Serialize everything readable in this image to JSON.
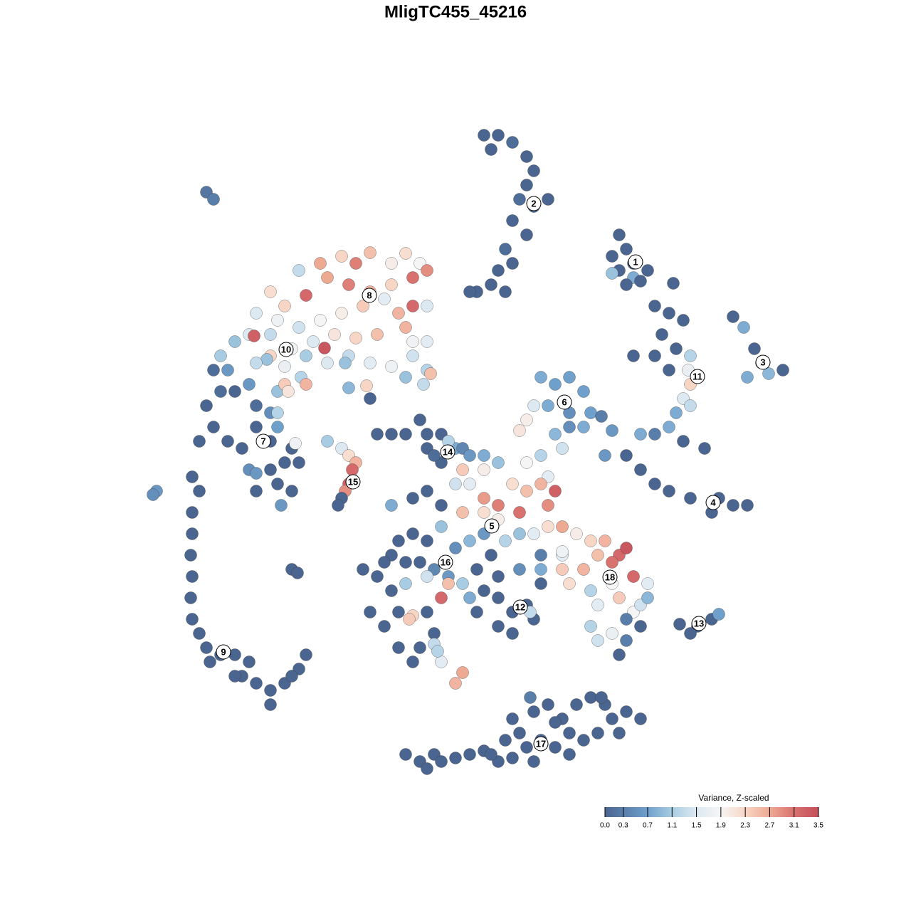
{
  "chart_data": {
    "type": "scatter",
    "title": "MligTC455_45216",
    "xlim": [
      0,
      128
    ],
    "ylim": [
      128,
      0
    ],
    "x": [
      68,
      70,
      69,
      72,
      74,
      75,
      74,
      73,
      75,
      77,
      72,
      74,
      71,
      72,
      70,
      69,
      67,
      71,
      66,
      87,
      88,
      86,
      89,
      87,
      86,
      89,
      91,
      88,
      90,
      94.6,
      92,
      94,
      96,
      93,
      95,
      92,
      89,
      97,
      94,
      96.7,
      97,
      96,
      95,
      97,
      94,
      92,
      96,
      99,
      90,
      103,
      104.5,
      106,
      107,
      110,
      105,
      108,
      86,
      88,
      90,
      92,
      94,
      97,
      100,
      103,
      105,
      101,
      85,
      76,
      78,
      80,
      82,
      77,
      80,
      83,
      75,
      74,
      73,
      78,
      80,
      76,
      79,
      82,
      84.5,
      74,
      77,
      42,
      45,
      48,
      50,
      52,
      55,
      57,
      59,
      60,
      58,
      55,
      52,
      49,
      46,
      43,
      40,
      38,
      36,
      39,
      42,
      45,
      48,
      51,
      54,
      56,
      58,
      60,
      57,
      53,
      50,
      47,
      44,
      41,
      38,
      35,
      33,
      31,
      35.7,
      45.6,
      38,
      40,
      43,
      46,
      49,
      52,
      55,
      58,
      60,
      57,
      60,
      58,
      60.5,
      48.5,
      42.3,
      37.5,
      32,
      36,
      49,
      51.5,
      52,
      59.5,
      30,
      31,
      29,
      33,
      35,
      36,
      38,
      39,
      40,
      40.5,
      43,
      39,
      36,
      30,
      32,
      28,
      34,
      38,
      35,
      38,
      40,
      42,
      41,
      39,
      36,
      39.5,
      41,
      41.5,
      39,
      36,
      27,
      28,
      27,
      27,
      26.8,
      27,
      26.8,
      27,
      28,
      29,
      31,
      33,
      35,
      34,
      36,
      38,
      40,
      42,
      43,
      41,
      38,
      33,
      29.5,
      22,
      21.5,
      29,
      30,
      41,
      41.8,
      46,
      48,
      49,
      50,
      49.5,
      49,
      48.5,
      48,
      47.5,
      53,
      55,
      57,
      59,
      60,
      62,
      60,
      62,
      64,
      65,
      66,
      68,
      70,
      61,
      68,
      65,
      63,
      55,
      58,
      60,
      62,
      64,
      66,
      68,
      70,
      72,
      74,
      76,
      78,
      77,
      73,
      70,
      68,
      65,
      62,
      64,
      60,
      58,
      56,
      55,
      57,
      59,
      61,
      63,
      65,
      67,
      69,
      71,
      73,
      75,
      77,
      79,
      81,
      83,
      85,
      87,
      88,
      86,
      84,
      82,
      80,
      86,
      87,
      89,
      89,
      84,
      83,
      84,
      86,
      88,
      90,
      91,
      91,
      90,
      88,
      87,
      83,
      79,
      76,
      73,
      70,
      68,
      66,
      70,
      72,
      74,
      76,
      75,
      70,
      72,
      67,
      63,
      62,
      60,
      57,
      55,
      53,
      51,
      54,
      56,
      52,
      54,
      60,
      61,
      59,
      58,
      56,
      61,
      62,
      61.5,
      64,
      65,
      58,
      57.5,
      74.5,
      79,
      79,
      76,
      68,
      66,
      95.5,
      98,
      100,
      101,
      97,
      57,
      59,
      61,
      62,
      64,
      66,
      68,
      70,
      72,
      74,
      73,
      72,
      74.5,
      75,
      77,
      79,
      81,
      83,
      85,
      86,
      88,
      90,
      87,
      84,
      82,
      80,
      78,
      76,
      80,
      75,
      71,
      69,
      84.5,
      78,
      60
    ],
    "y": [
      19,
      19,
      21,
      20,
      22,
      24,
      26,
      28,
      29,
      28,
      31,
      33,
      35,
      37,
      38,
      40,
      41,
      41,
      41,
      33,
      35,
      36,
      37,
      38,
      38.4,
      39,
      38,
      40,
      39.5,
      39.8,
      43,
      44,
      45,
      47,
      49,
      50,
      50,
      50,
      52,
      52,
      54,
      56,
      58,
      57,
      60,
      61,
      62,
      63,
      61,
      44.5,
      46,
      49,
      51,
      52,
      53,
      52.5,
      60.5,
      64,
      66,
      68,
      69,
      70,
      72,
      71,
      71,
      70,
      64,
      53,
      54,
      53,
      55,
      57,
      58,
      58,
      57,
      59,
      60.5,
      61,
      60,
      64,
      63,
      60,
      58.5,
      65,
      67,
      38,
      37,
      36,
      37,
      35.5,
      37,
      35.6,
      37,
      38,
      39,
      40,
      41,
      40,
      39,
      41.5,
      43,
      41,
      44,
      45,
      46,
      45,
      44,
      43,
      42,
      44,
      43,
      43,
      46,
      47,
      47.5,
      47,
      48,
      49,
      47,
      47,
      48,
      50,
      47.2,
      48.9,
      50,
      51.5,
      50,
      51,
      50,
      51,
      51.5,
      50,
      52,
      53,
      48,
      48,
      52.5,
      51,
      53,
      50.5,
      52,
      51,
      54.5,
      54.2,
      56,
      54,
      52,
      55,
      57,
      55,
      54,
      57,
      58,
      55,
      54,
      55,
      54,
      58,
      60,
      60,
      62,
      62,
      63,
      62,
      66,
      66,
      65,
      65,
      63,
      68,
      69,
      71,
      69,
      62.3,
      60,
      66.5,
      67,
      69,
      72,
      75,
      78,
      81,
      84,
      87,
      89,
      91,
      92,
      92,
      93,
      95,
      96,
      97,
      96,
      94,
      92,
      95,
      99,
      95,
      93,
      69,
      69.5,
      27,
      28,
      80,
      80.5,
      62,
      63,
      64,
      65,
      66,
      68,
      69,
      70,
      71,
      61,
      61,
      61,
      59,
      61,
      61,
      63,
      65,
      63,
      63,
      64,
      64,
      65,
      64,
      66,
      66,
      62,
      71,
      70,
      69,
      71,
      68,
      68,
      70,
      71,
      68,
      69,
      68,
      69,
      71,
      72,
      73,
      72,
      72,
      74,
      77,
      76,
      75,
      76,
      78,
      79,
      79,
      80,
      81,
      82,
      80,
      78,
      76,
      75,
      75,
      74,
      74,
      75,
      76,
      76,
      78,
      77,
      79,
      78,
      80,
      82,
      82,
      84,
      81,
      86,
      85,
      88,
      90,
      89,
      87,
      85,
      82,
      84,
      88,
      90,
      92,
      83,
      78,
      78,
      80,
      81,
      83,
      84,
      84,
      86,
      85,
      82,
      87,
      88,
      89,
      86,
      82,
      84,
      81,
      82,
      83,
      81,
      80,
      79,
      86,
      86,
      88,
      86,
      89,
      91,
      93,
      91,
      90.5,
      93,
      91.5,
      96,
      94.5,
      86.5,
      87,
      86,
      77.5,
      80,
      80,
      75,
      76,
      87.7,
      88,
      87,
      86.3,
      89,
      106,
      107,
      106,
      107,
      106.5,
      106,
      105.5,
      107,
      106.5,
      105,
      103,
      101,
      98,
      100,
      99,
      101,
      99,
      98,
      99,
      101,
      100,
      101,
      103,
      103,
      104,
      103,
      105,
      104,
      106,
      107,
      104,
      106,
      98,
      101.5,
      108
    ],
    "values": [
      0,
      0,
      0,
      0.1,
      0,
      0,
      0,
      0.1,
      0,
      0,
      0,
      0,
      0.1,
      0,
      0,
      0,
      0,
      0,
      0,
      0,
      0,
      0,
      0,
      0,
      1.0,
      0.8,
      0,
      0,
      0,
      0,
      0,
      0,
      0,
      0,
      0,
      0,
      0,
      1.2,
      0,
      1.7,
      2.3,
      1.5,
      0.8,
      1.3,
      0.8,
      0.3,
      0,
      0,
      0.8,
      0,
      0.8,
      0,
      0,
      0,
      0.8,
      0.9,
      0.6,
      0,
      0,
      0,
      0,
      0,
      0,
      0,
      0,
      0,
      0.6,
      0.8,
      0.7,
      0.7,
      0.7,
      0.8,
      0.5,
      0.7,
      1.5,
      2.0,
      2.1,
      0.9,
      0.5,
      1.2,
      1.4,
      0.8,
      0.3,
      1.9,
      1.6,
      1.3,
      2.7,
      2.3,
      3.0,
      2.5,
      2.0,
      2.2,
      1.9,
      2.9,
      3.1,
      2.3,
      2.6,
      3.0,
      2.7,
      3.2,
      2.3,
      2.2,
      1.5,
      1.8,
      1.4,
      1.9,
      2.0,
      2.4,
      1.6,
      2.6,
      3.2,
      1.5,
      2.6,
      2.5,
      2.3,
      2.1,
      1.5,
      1.8,
      1.3,
      1.5,
      1.0,
      1.1,
      3.3,
      3.4,
      2.3,
      1.7,
      1.1,
      1.5,
      1.3,
      1.6,
      1.8,
      1.4,
      1.2,
      1.0,
      1.6,
      1.8,
      2.5,
      1.0,
      1.2,
      1.0,
      0.6,
      1.3,
      0.9,
      2.3,
      0,
      1.3,
      0.1,
      0.1,
      0,
      0,
      0.6,
      0.1,
      0.5,
      1.0,
      2.4,
      2.1,
      2.6,
      1.2,
      0,
      0,
      0,
      0,
      0,
      0,
      0.5,
      0,
      0,
      0,
      0,
      0,
      0,
      0.6,
      0,
      1.8,
      0.7,
      0.6,
      0,
      0,
      0,
      0,
      0,
      0,
      0,
      0,
      0,
      0,
      0,
      0,
      0,
      0,
      0,
      0,
      0,
      0,
      0,
      0,
      0,
      0,
      0,
      0.6,
      0.5,
      0.2,
      0.3,
      0,
      0,
      1.1,
      1.5,
      2.2,
      2.6,
      3.2,
      3.3,
      2.9,
      0,
      0,
      0,
      0,
      0,
      0,
      0,
      0,
      0,
      0,
      0.8,
      0.4,
      0.6,
      0.8,
      1.0,
      0.1,
      2.0,
      2.4,
      1.2,
      0.8,
      0,
      0,
      0,
      1.4,
      1.6,
      2.8,
      3.0,
      2.2,
      2.5,
      2.6,
      3.3,
      2.9,
      3.1,
      2.0,
      2.2,
      2.5,
      1.0,
      0.5,
      0,
      0,
      0,
      0,
      0,
      0,
      0.4,
      0.6,
      1.1,
      0,
      0,
      1.2,
      1.0,
      1.6,
      2.2,
      2.7,
      2.0,
      2.3,
      2.6,
      3.2,
      3.4,
      3.1,
      2.5,
      2.6,
      2.2,
      1.9,
      2.4,
      3.2,
      1.9,
      1.6,
      1.2,
      1.4,
      1.7,
      0.3,
      1.4,
      1.6,
      0.9,
      0,
      0.3,
      0,
      1.2,
      1.6,
      0.3,
      0.5,
      0,
      0,
      0.8,
      0,
      0,
      0,
      0,
      0,
      0,
      0,
      0,
      2.5,
      3.2,
      1.4,
      1.1,
      0,
      0,
      0,
      0,
      0,
      0,
      0,
      0,
      0,
      0,
      0,
      0,
      1.3,
      1.6,
      1.2,
      2.6,
      2.7,
      2.3,
      2.4,
      1.3,
      1.8,
      2.4,
      0.8,
      0.6,
      0.9,
      0,
      0,
      0,
      0.7,
      0,
      0,
      0,
      0,
      0,
      0,
      0,
      0,
      0,
      0,
      0,
      0,
      0,
      0.3,
      0,
      0,
      0,
      0,
      0,
      0,
      0,
      0,
      0,
      0,
      0,
      0,
      0,
      0,
      0,
      0,
      0,
      0,
      0,
      0,
      0,
      0
    ],
    "clusters": {
      "labels": [
        "1",
        "2",
        "3",
        "4",
        "5",
        "6",
        "7",
        "8",
        "9",
        "10",
        "11",
        "12",
        "13",
        "14",
        "15",
        "16",
        "17",
        "18"
      ],
      "x": [
        89.3,
        75,
        107.2,
        100.2,
        69.1,
        79.3,
        37,
        51.9,
        31.4,
        40.2,
        98,
        73.1,
        98.2,
        62.9,
        49.6,
        62.6,
        76,
        85.7
      ],
      "y": [
        36.8,
        28.6,
        50.9,
        70.6,
        73.9,
        56.5,
        62,
        41.5,
        91.6,
        49.1,
        52.9,
        85.3,
        87.6,
        63.5,
        67.7,
        79,
        104.5,
        81.1
      ]
    },
    "colorbar": {
      "title": "Variance, Z-scaled",
      "lim": [
        0,
        3.5
      ],
      "ticks": [
        {
          "value": 0,
          "label": "0.0"
        },
        0.3,
        0.7,
        1.1,
        1.5,
        1.9,
        2.3,
        2.7,
        3.1,
        3.5
      ],
      "stops": [
        0,
        0.7,
        1.1,
        1.5,
        1.9,
        2.3,
        2.7,
        3.1,
        3.5
      ],
      "colors": [
        "#4a6590",
        "#6fa0cc",
        "#a8cde3",
        "#dde9f1",
        "#f5f5f5",
        "#f8d6c5",
        "#eea993",
        "#d9716f",
        "#c44e5a"
      ]
    }
  }
}
